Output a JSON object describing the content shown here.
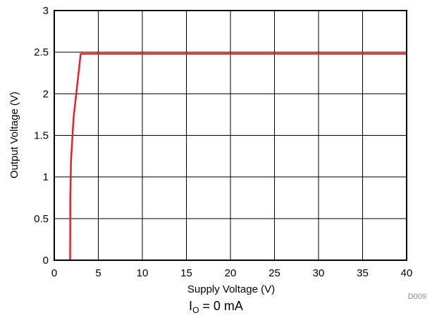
{
  "chart_data": {
    "type": "line",
    "title": "",
    "xlabel": "Supply Voltage (V)",
    "ylabel": "Output Voltage (V)",
    "xlim": [
      0,
      40
    ],
    "ylim": [
      0,
      3
    ],
    "xticks": [
      0,
      5,
      10,
      15,
      20,
      25,
      30,
      35,
      40
    ],
    "yticks": [
      0,
      0.5,
      1,
      1.5,
      2,
      2.5,
      3
    ],
    "grid": true,
    "series": [
      {
        "color": "#e8202a",
        "x": [
          1.8,
          1.82,
          1.9,
          2.2,
          3.0,
          40
        ],
        "y": [
          0,
          0.75,
          1.2,
          1.72,
          2.48,
          2.48
        ]
      }
    ],
    "figure_id": "D009",
    "condition": {
      "symbol": "I",
      "subscript": "O",
      "text": " = 0 mA"
    }
  }
}
